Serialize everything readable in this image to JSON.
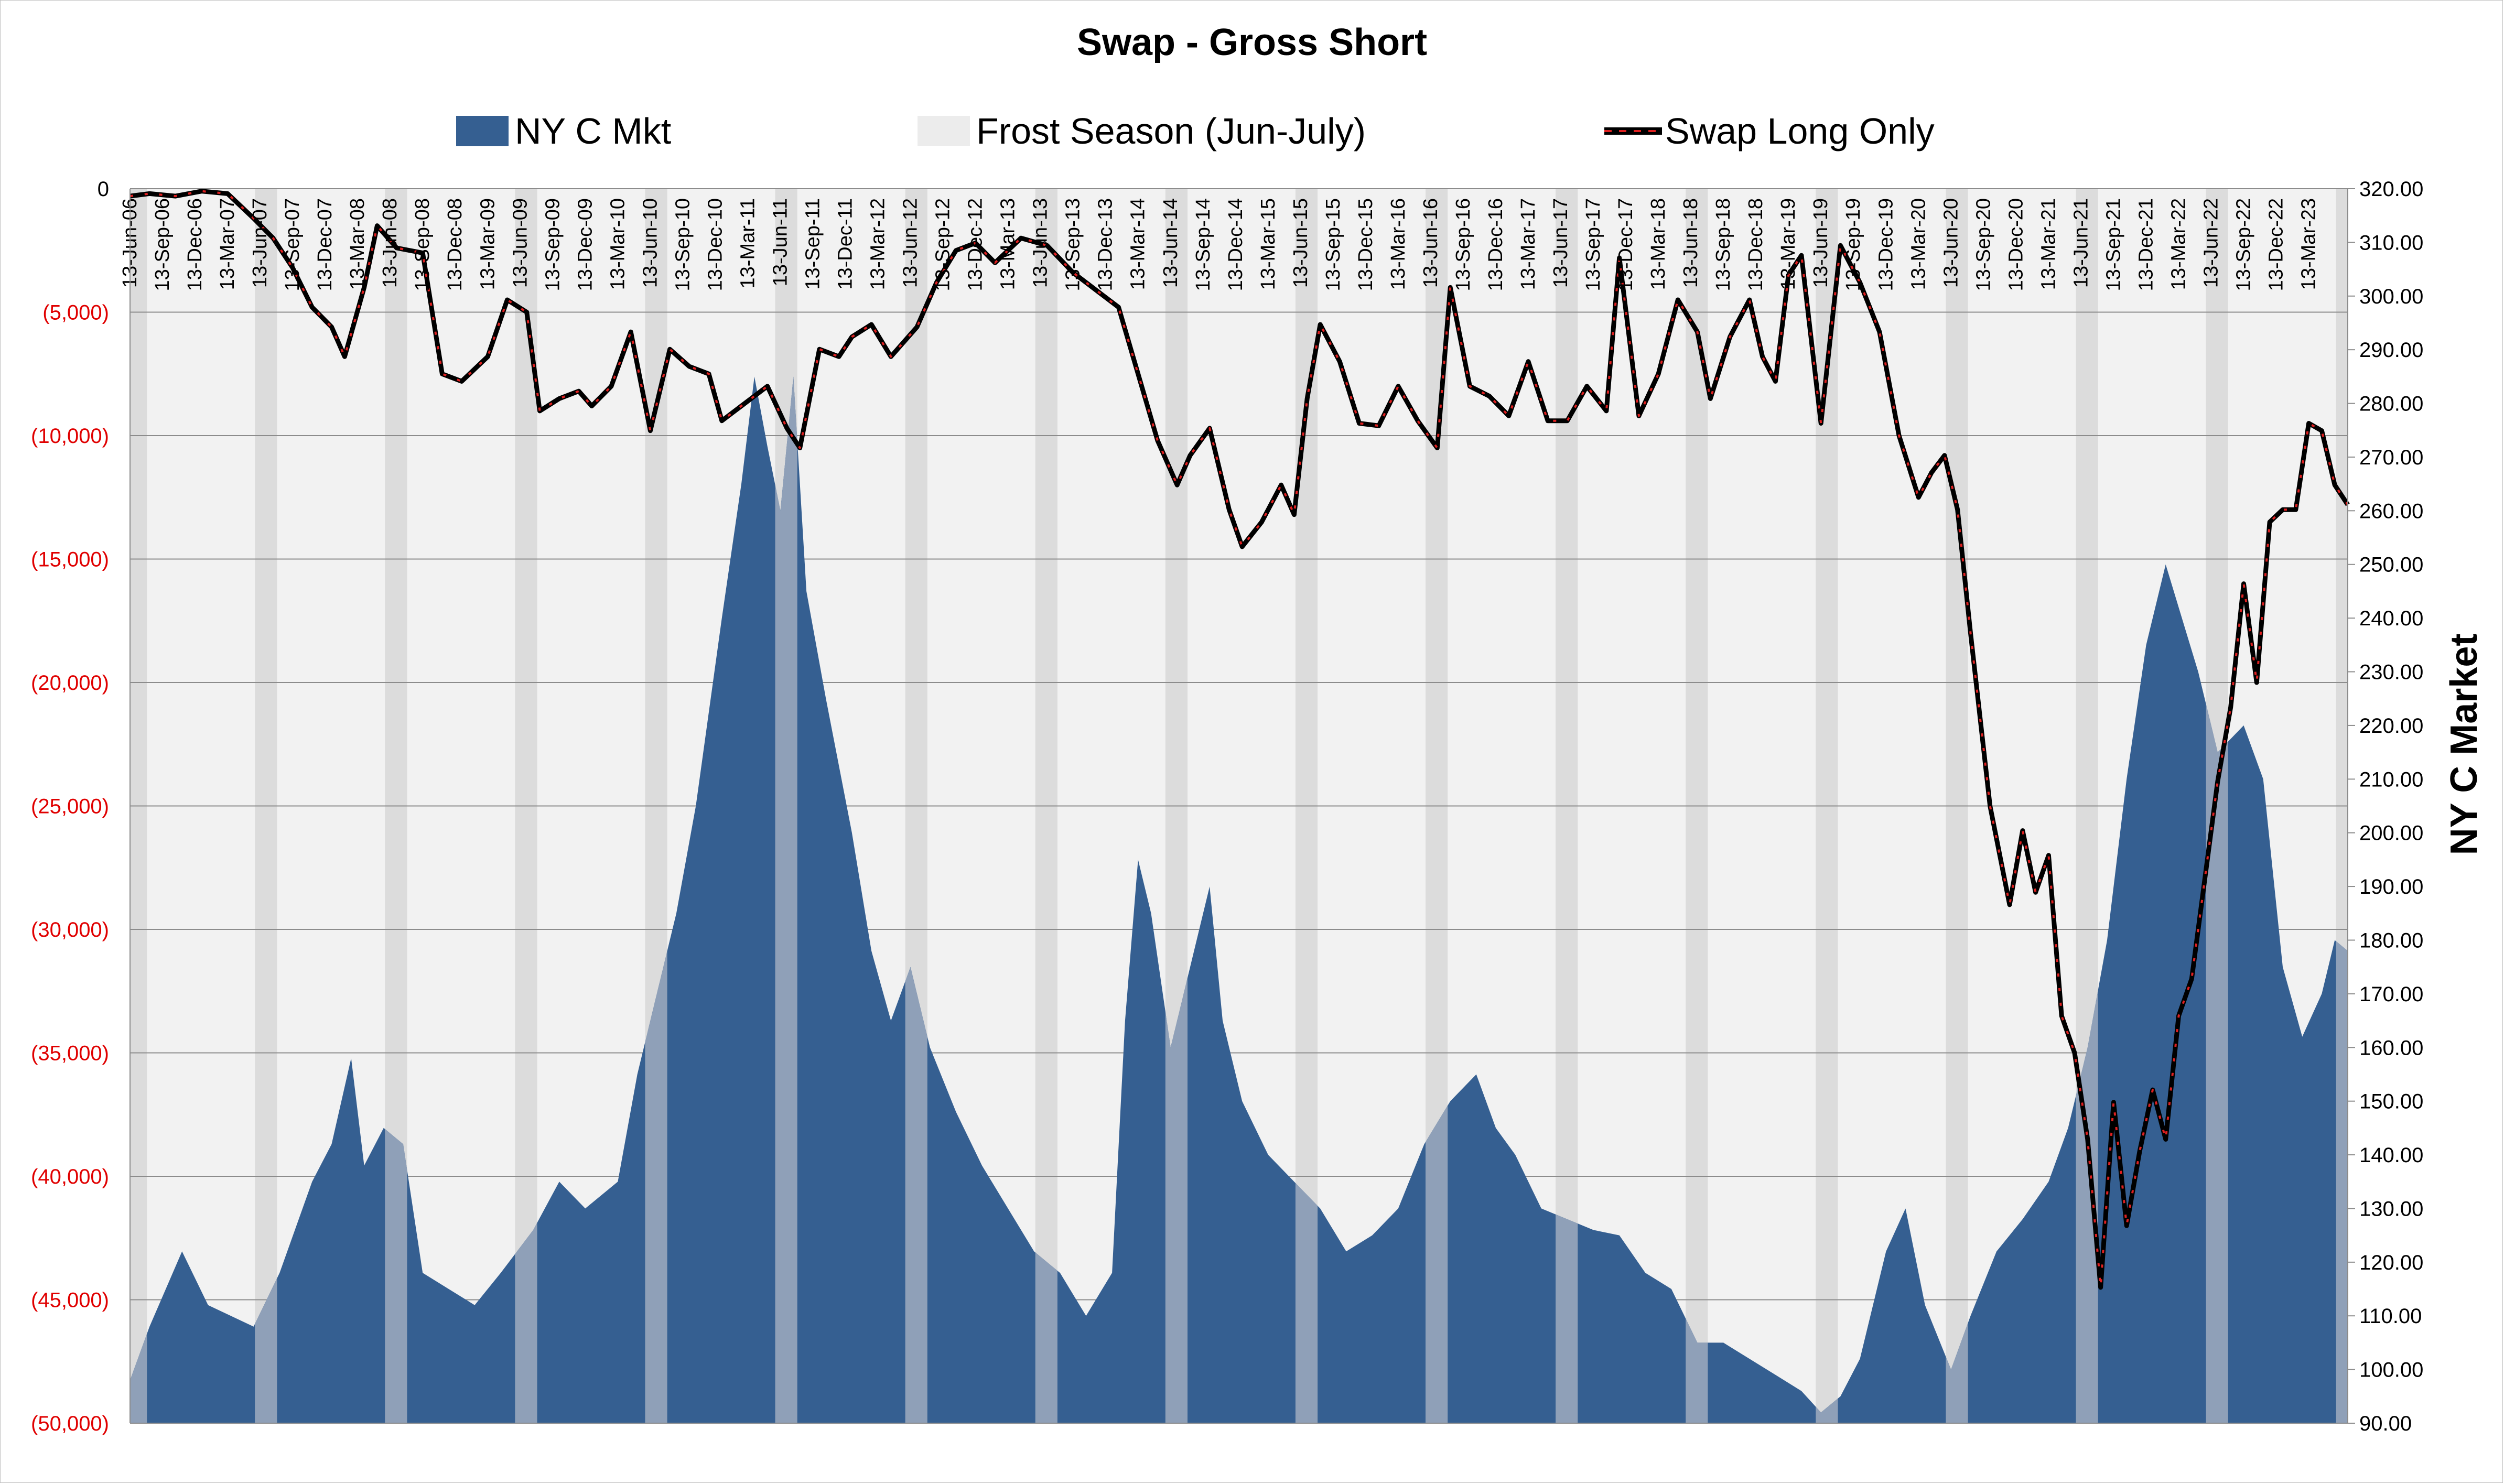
{
  "chart_data": {
    "type": "area",
    "title": "Swap - Gross Short",
    "legend": {
      "placement": "top",
      "entries": [
        "NY C Mkt",
        "Frost Season (Jun-July)",
        "Swap Long Only"
      ]
    },
    "y_left": {
      "ylim": [
        -50000,
        0
      ],
      "tick_labels": [
        "0",
        "(5,000)",
        "(10,000)",
        "(15,000)",
        "(20,000)",
        "(25,000)",
        "(30,000)",
        "(35,000)",
        "(40,000)",
        "(45,000)",
        "(50,000)"
      ],
      "negative_tick_color": "#e00000"
    },
    "y_right": {
      "ylabel": "NY C Market",
      "ylim": [
        90,
        320
      ],
      "tick_labels": [
        "320.00",
        "310.00",
        "300.00",
        "290.00",
        "280.00",
        "270.00",
        "260.00",
        "250.00",
        "240.00",
        "230.00",
        "220.00",
        "210.00",
        "200.00",
        "190.00",
        "180.00",
        "170.00",
        "160.00",
        "150.00",
        "140.00",
        "130.00",
        "120.00",
        "110.00",
        "100.00",
        "90.00"
      ]
    },
    "x_range": [
      2006.45,
      2023.5
    ],
    "x_tick_labels": [
      "13-Jun-06",
      "13-Sep-06",
      "13-Dec-06",
      "13-Mar-07",
      "13-Jun-07",
      "13-Sep-07",
      "13-Dec-07",
      "13-Mar-08",
      "13-Jun-08",
      "13-Sep-08",
      "13-Dec-08",
      "13-Mar-09",
      "13-Jun-09",
      "13-Sep-09",
      "13-Dec-09",
      "13-Mar-10",
      "13-Jun-10",
      "13-Sep-10",
      "13-Dec-10",
      "13-Mar-11",
      "13-Jun-11",
      "13-Sep-11",
      "13-Dec-11",
      "13-Mar-12",
      "13-Jun-12",
      "13-Sep-12",
      "13-Dec-12",
      "13-Mar-13",
      "13-Jun-13",
      "13-Sep-13",
      "13-Dec-13",
      "13-Mar-14",
      "13-Jun-14",
      "13-Sep-14",
      "13-Dec-14",
      "13-Mar-15",
      "13-Jun-15",
      "13-Sep-15",
      "13-Dec-15",
      "13-Mar-16",
      "13-Jun-16",
      "13-Sep-16",
      "13-Dec-16",
      "13-Mar-17",
      "13-Jun-17",
      "13-Sep-17",
      "13-Dec-17",
      "13-Mar-18",
      "13-Jun-18",
      "13-Sep-18",
      "13-Dec-18",
      "13-Mar-19",
      "13-Jun-19",
      "13-Sep-19",
      "13-Dec-19",
      "13-Mar-20",
      "13-Jun-20",
      "13-Sep-20",
      "13-Dec-20",
      "13-Mar-21",
      "13-Jun-21",
      "13-Sep-21",
      "13-Dec-21",
      "13-Mar-22",
      "13-Jun-22",
      "13-Sep-22",
      "13-Dec-22",
      "13-Mar-23"
    ],
    "series": [
      {
        "name": "NY C Mkt",
        "axis": "right",
        "style": "area",
        "color": "#355f91",
        "frost_color": "#8fa0b8",
        "x": [
          2006.45,
          2006.6,
          2006.85,
          2007.05,
          2007.4,
          2007.6,
          2007.85,
          2008.0,
          2008.15,
          2008.25,
          2008.4,
          2008.55,
          2008.7,
          2008.9,
          2009.1,
          2009.3,
          2009.55,
          2009.75,
          2009.95,
          2010.2,
          2010.35,
          2010.5,
          2010.65,
          2010.8,
          2011.0,
          2011.15,
          2011.25,
          2011.35,
          2011.45,
          2011.55,
          2011.65,
          2011.8,
          2012.0,
          2012.15,
          2012.3,
          2012.45,
          2012.6,
          2012.8,
          2013.0,
          2013.2,
          2013.4,
          2013.6,
          2013.8,
          2014.0,
          2014.1,
          2014.2,
          2014.3,
          2014.45,
          2014.6,
          2014.75,
          2014.85,
          2015.0,
          2015.2,
          2015.4,
          2015.6,
          2015.8,
          2016.0,
          2016.2,
          2016.4,
          2016.6,
          2016.8,
          2016.95,
          2017.1,
          2017.3,
          2017.5,
          2017.7,
          2017.9,
          2018.1,
          2018.3,
          2018.5,
          2018.7,
          2018.9,
          2019.1,
          2019.3,
          2019.45,
          2019.6,
          2019.75,
          2019.95,
          2020.1,
          2020.25,
          2020.45,
          2020.6,
          2020.8,
          2021.0,
          2021.2,
          2021.35,
          2021.5,
          2021.65,
          2021.8,
          2021.95,
          2022.1,
          2022.2,
          2022.35,
          2022.5,
          2022.7,
          2022.85,
          2023.0,
          2023.15,
          2023.3,
          2023.4,
          2023.5
        ],
        "values": [
          98,
          108,
          122,
          112,
          108,
          118,
          135,
          142,
          158,
          138,
          145,
          142,
          118,
          115,
          112,
          118,
          126,
          135,
          130,
          135,
          155,
          170,
          185,
          205,
          240,
          265,
          285,
          272,
          260,
          285,
          245,
          225,
          200,
          178,
          165,
          175,
          160,
          148,
          138,
          130,
          122,
          118,
          110,
          118,
          165,
          195,
          185,
          160,
          175,
          190,
          165,
          150,
          140,
          135,
          130,
          122,
          125,
          130,
          142,
          150,
          155,
          145,
          140,
          130,
          128,
          126,
          125,
          118,
          115,
          105,
          105,
          102,
          99,
          96,
          92,
          95,
          102,
          122,
          130,
          112,
          100,
          110,
          122,
          128,
          135,
          145,
          160,
          180,
          210,
          235,
          250,
          242,
          230,
          215,
          220,
          210,
          175,
          162,
          170,
          180,
          178
        ]
      },
      {
        "name": "Swap Long Only",
        "axis": "left",
        "style": "line",
        "color": "#000000",
        "marker_color": "#e02020",
        "x": [
          2006.45,
          2006.6,
          2006.8,
          2007.0,
          2007.2,
          2007.4,
          2007.55,
          2007.7,
          2007.85,
          2008.0,
          2008.1,
          2008.25,
          2008.35,
          2008.5,
          2008.7,
          2008.85,
          2009.0,
          2009.2,
          2009.35,
          2009.5,
          2009.6,
          2009.75,
          2009.9,
          2010.0,
          2010.15,
          2010.3,
          2010.45,
          2010.6,
          2010.75,
          2010.9,
          2011.0,
          2011.15,
          2011.35,
          2011.5,
          2011.6,
          2011.75,
          2011.9,
          2012.0,
          2012.15,
          2012.3,
          2012.5,
          2012.65,
          2012.8,
          2012.95,
          2013.1,
          2013.3,
          2013.5,
          2013.7,
          2013.9,
          2014.05,
          2014.2,
          2014.35,
          2014.5,
          2014.6,
          2014.75,
          2014.9,
          2015.0,
          2015.15,
          2015.3,
          2015.4,
          2015.5,
          2015.6,
          2015.75,
          2015.9,
          2016.05,
          2016.2,
          2016.35,
          2016.5,
          2016.6,
          2016.75,
          2016.9,
          2017.05,
          2017.2,
          2017.35,
          2017.5,
          2017.65,
          2017.8,
          2017.9,
          2018.05,
          2018.2,
          2018.35,
          2018.5,
          2018.6,
          2018.75,
          2018.9,
          2019.0,
          2019.1,
          2019.2,
          2019.3,
          2019.45,
          2019.6,
          2019.75,
          2019.9,
          2020.05,
          2020.2,
          2020.3,
          2020.4,
          2020.5,
          2020.6,
          2020.75,
          2020.9,
          2021.0,
          2021.1,
          2021.2,
          2021.3,
          2021.4,
          2021.5,
          2021.6,
          2021.7,
          2021.8,
          2021.9,
          2022.0,
          2022.1,
          2022.2,
          2022.3,
          2022.4,
          2022.5,
          2022.6,
          2022.7,
          2022.8,
          2022.9,
          2023.0,
          2023.1,
          2023.2,
          2023.3,
          2023.4,
          2023.5
        ],
        "values": [
          -300,
          -200,
          -300,
          -100,
          -200,
          -1200,
          -2000,
          -3200,
          -4800,
          -5600,
          -6800,
          -4000,
          -1500,
          -2400,
          -2600,
          -7500,
          -7800,
          -6800,
          -4500,
          -5000,
          -9000,
          -8500,
          -8200,
          -8800,
          -8000,
          -5800,
          -9800,
          -6500,
          -7200,
          -7500,
          -9400,
          -8800,
          -8000,
          -9700,
          -10500,
          -6500,
          -6800,
          -6000,
          -5500,
          -6800,
          -5600,
          -3800,
          -2500,
          -2200,
          -3000,
          -2000,
          -2300,
          -3400,
          -4200,
          -4800,
          -7500,
          -10200,
          -12000,
          -10800,
          -9700,
          -13000,
          -14500,
          -13500,
          -12000,
          -13200,
          -8500,
          -5500,
          -7000,
          -9500,
          -9600,
          -8000,
          -9400,
          -10500,
          -4000,
          -8000,
          -8400,
          -9200,
          -7000,
          -9400,
          -9400,
          -8000,
          -9000,
          -2800,
          -9200,
          -7500,
          -4500,
          -5800,
          -8500,
          -6000,
          -4500,
          -6800,
          -7800,
          -3500,
          -2700,
          -9500,
          -2300,
          -3800,
          -5800,
          -10000,
          -12500,
          -11500,
          -10800,
          -13000,
          -18000,
          -25000,
          -29000,
          -26000,
          -28500,
          -27000,
          -33500,
          -35000,
          -38500,
          -44500,
          -37000,
          -42000,
          -39000,
          -36500,
          -38500,
          -33500,
          -32000,
          -28000,
          -24000,
          -21000,
          -16000,
          -20000,
          -13500,
          -13000,
          -13000,
          -9500,
          -9800,
          -12000,
          -12800
        ]
      }
    ]
  }
}
